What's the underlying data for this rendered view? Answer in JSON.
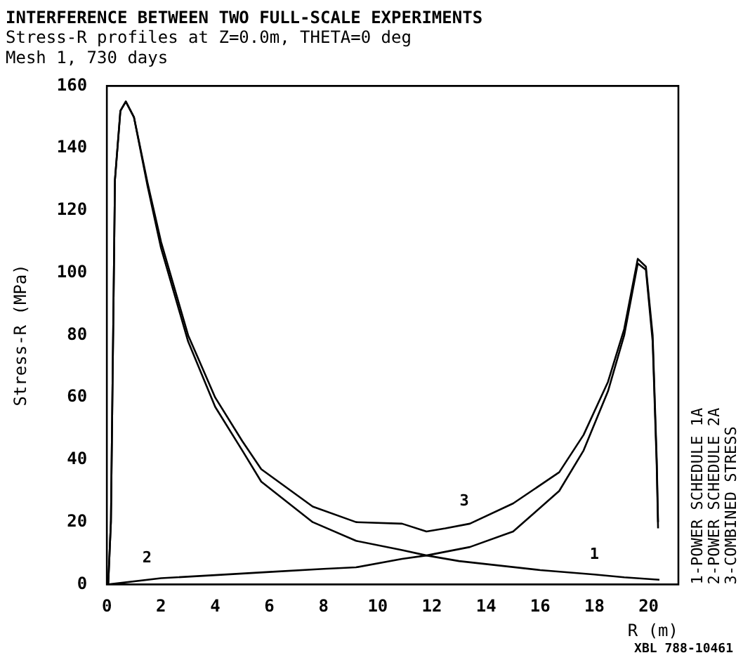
{
  "chart_data": {
    "type": "line",
    "title": "INTERFERENCE BETWEEN TWO FULL-SCALE EXPERIMENTS",
    "subtitle": "Stress-R profiles at Z=0.0m, THETA=0 deg\nMesh 1, 730 days",
    "xlabel": "R (m)",
    "ylabel": "Stress-R (MPa)",
    "xlim": [
      0,
      21.1
    ],
    "ylim": [
      0,
      160
    ],
    "xticks": [
      0,
      2,
      4,
      6,
      8,
      10,
      12,
      14,
      16,
      18,
      20
    ],
    "yticks": [
      0,
      20,
      40,
      60,
      80,
      100,
      120,
      140,
      160
    ],
    "grid": false,
    "legend": false,
    "marker": "none",
    "line_style": "solid",
    "series": [
      {
        "name": "1",
        "color": "#000000",
        "x": [
          0.05,
          0.15,
          0.3,
          0.5,
          0.7,
          1,
          1.5,
          2,
          3,
          4,
          5,
          5.7,
          7.6,
          9.2,
          10.9,
          11.8,
          13,
          16,
          18,
          19.1,
          20.4
        ],
        "values": [
          0,
          20,
          130,
          152,
          155,
          150,
          128,
          108,
          78,
          57,
          43,
          33,
          20,
          14,
          11,
          9.3,
          7.5,
          4.6,
          3.2,
          2.3,
          1.5
        ]
      },
      {
        "name": "2",
        "color": "#000000",
        "x": [
          0.05,
          2,
          4,
          6,
          8,
          9.2,
          10.9,
          11.8,
          13.4,
          15,
          16.7,
          17.6,
          18.5,
          19.1,
          19.6,
          19.9,
          20.15,
          20.3,
          20.35
        ],
        "values": [
          0,
          2,
          3,
          4,
          5,
          5.5,
          8.2,
          9.3,
          12,
          17,
          30,
          43,
          62,
          80,
          103,
          101,
          78,
          38,
          18
        ]
      },
      {
        "name": "3",
        "color": "#000000",
        "x": [
          0.05,
          0.15,
          0.3,
          0.5,
          0.7,
          1,
          1.5,
          2,
          3,
          4,
          5,
          5.7,
          7.6,
          9.2,
          10.9,
          11.8,
          12.5,
          13.4,
          15,
          16.7,
          17.6,
          18.5,
          19.1,
          19.6,
          19.9,
          20.15,
          20.3,
          20.35
        ],
        "values": [
          0,
          20,
          130,
          152,
          155,
          150,
          129,
          110,
          80,
          60,
          46,
          37,
          25,
          20,
          19.5,
          17,
          18,
          19.5,
          26,
          36,
          48,
          65,
          82,
          104.5,
          102,
          80,
          40,
          20
        ]
      }
    ],
    "annotations": [
      "1-POWER SCHEDULE 1A",
      "2-POWER SCHEDULE 2A",
      "3-COMBINED STRESS",
      "XBL 788-10461"
    ]
  }
}
